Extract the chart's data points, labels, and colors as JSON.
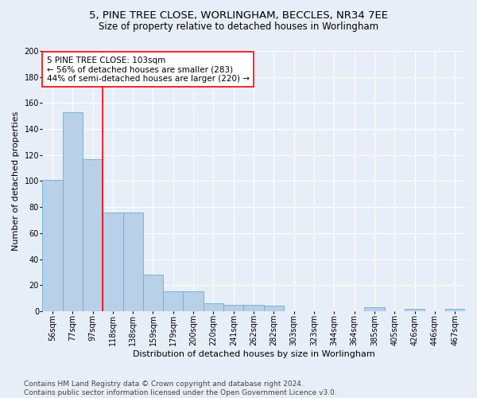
{
  "title_line1": "5, PINE TREE CLOSE, WORLINGHAM, BECCLES, NR34 7EE",
  "title_line2": "Size of property relative to detached houses in Worlingham",
  "xlabel": "Distribution of detached houses by size in Worlingham",
  "ylabel": "Number of detached properties",
  "categories": [
    "56sqm",
    "77sqm",
    "97sqm",
    "118sqm",
    "138sqm",
    "159sqm",
    "179sqm",
    "200sqm",
    "220sqm",
    "241sqm",
    "262sqm",
    "282sqm",
    "303sqm",
    "323sqm",
    "344sqm",
    "364sqm",
    "385sqm",
    "405sqm",
    "426sqm",
    "446sqm",
    "467sqm"
  ],
  "values": [
    101,
    153,
    117,
    76,
    76,
    28,
    15,
    15,
    6,
    5,
    5,
    4,
    0,
    0,
    0,
    0,
    3,
    0,
    2,
    0,
    2
  ],
  "bar_color": "#b8d0e8",
  "bar_edgecolor": "#6aaed6",
  "vline_x": 2.5,
  "vline_color": "red",
  "annotation_text": "5 PINE TREE CLOSE: 103sqm\n← 56% of detached houses are smaller (283)\n44% of semi-detached houses are larger (220) →",
  "annotation_box_color": "white",
  "annotation_box_edgecolor": "red",
  "ylim": [
    0,
    200
  ],
  "yticks": [
    0,
    20,
    40,
    60,
    80,
    100,
    120,
    140,
    160,
    180,
    200
  ],
  "footnote": "Contains HM Land Registry data © Crown copyright and database right 2024.\nContains public sector information licensed under the Open Government Licence v3.0.",
  "background_color": "#e8eef8",
  "plot_background_color": "#e8eef8",
  "grid_color": "#ffffff",
  "title_fontsize": 9.5,
  "subtitle_fontsize": 8.5,
  "axis_label_fontsize": 8,
  "tick_fontsize": 7,
  "annotation_fontsize": 7.5,
  "footnote_fontsize": 6.5
}
